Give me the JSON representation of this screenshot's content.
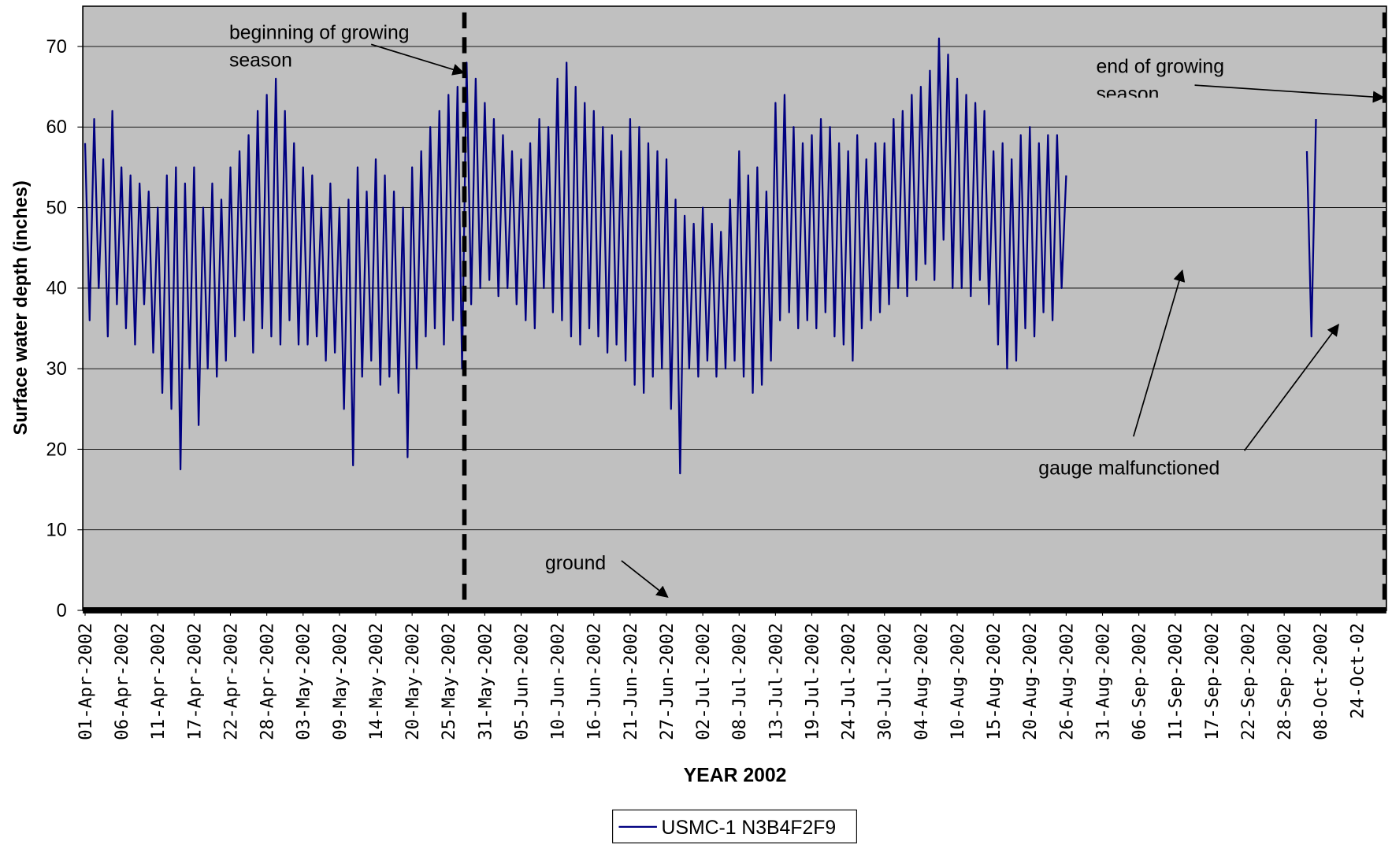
{
  "chart_data": {
    "type": "line",
    "x_title": "YEAR 2002",
    "y_title": "Surface water depth (inches)",
    "ylim": [
      0,
      75
    ],
    "yticks": [
      0,
      10,
      20,
      30,
      40,
      50,
      60,
      70
    ],
    "grid": true,
    "legend": "bottom",
    "categories": [
      "01-Apr-2002",
      null,
      null,
      null,
      null,
      null,
      null,
      null,
      "06-Apr-2002",
      null,
      null,
      null,
      null,
      null,
      null,
      null,
      "11-Apr-2002",
      null,
      null,
      null,
      null,
      null,
      null,
      null,
      "17-Apr-2002",
      null,
      null,
      null,
      null,
      null,
      null,
      null,
      "22-Apr-2002",
      null,
      null,
      null,
      null,
      null,
      null,
      null,
      "28-Apr-2002",
      null,
      null,
      null,
      null,
      null,
      null,
      null,
      "03-May-2002",
      null,
      null,
      null,
      null,
      null,
      null,
      null,
      "09-May-2002",
      null,
      null,
      null,
      null,
      null,
      null,
      null,
      "14-May-2002",
      null,
      null,
      null,
      null,
      null,
      null,
      null,
      "20-May-2002",
      null,
      null,
      null,
      null,
      null,
      null,
      null,
      "25-May-2002",
      null,
      null,
      null,
      null,
      null,
      null,
      null,
      "31-May-2002",
      null,
      null,
      null,
      null,
      null,
      null,
      null,
      "05-Jun-2002",
      null,
      null,
      null,
      null,
      null,
      null,
      null,
      "10-Jun-2002",
      null,
      null,
      null,
      null,
      null,
      null,
      null,
      "16-Jun-2002",
      null,
      null,
      null,
      null,
      null,
      null,
      null,
      "21-Jun-2002",
      null,
      null,
      null,
      null,
      null,
      null,
      null,
      "27-Jun-2002",
      null,
      null,
      null,
      null,
      null,
      null,
      null,
      "02-Jul-2002",
      null,
      null,
      null,
      null,
      null,
      null,
      null,
      "08-Jul-2002",
      null,
      null,
      null,
      null,
      null,
      null,
      null,
      "13-Jul-2002",
      null,
      null,
      null,
      null,
      null,
      null,
      null,
      "19-Jul-2002",
      null,
      null,
      null,
      null,
      null,
      null,
      null,
      "24-Jul-2002",
      null,
      null,
      null,
      null,
      null,
      null,
      null,
      "30-Jul-2002",
      null,
      null,
      null,
      null,
      null,
      null,
      null,
      "04-Aug-2002",
      null,
      null,
      null,
      null,
      null,
      null,
      null,
      "10-Aug-2002",
      null,
      null,
      null,
      null,
      null,
      null,
      null,
      "15-Aug-2002",
      null,
      null,
      null,
      null,
      null,
      null,
      null,
      "20-Aug-2002",
      null,
      null,
      null,
      null,
      null,
      null,
      null,
      "26-Aug-2002",
      null,
      null,
      null,
      null,
      null,
      null,
      null,
      "31-Aug-2002",
      null,
      null,
      null,
      null,
      null,
      null,
      null,
      "06-Sep-2002",
      null,
      null,
      null,
      null,
      null,
      null,
      null,
      "11-Sep-2002",
      null,
      null,
      null,
      null,
      null,
      null,
      null,
      "17-Sep-2002",
      null,
      null,
      null,
      null,
      null,
      null,
      null,
      "22-Sep-2002",
      null,
      null,
      null,
      null,
      null,
      null,
      null,
      "28-Sep-2002",
      null,
      null,
      null,
      null,
      null,
      null,
      null,
      "08-Oct-2002",
      null,
      null,
      null,
      null,
      null,
      null,
      null,
      "24-Oct-02",
      null,
      null,
      null,
      null,
      null,
      null
    ],
    "series": [
      {
        "name": "USMC-1 N3B4F2F9",
        "color": "#000080",
        "values": [
          58,
          36,
          61,
          40,
          56,
          34,
          62,
          38,
          55,
          35,
          54,
          33,
          53,
          38,
          52,
          32,
          50,
          27,
          54,
          25,
          55,
          17.5,
          53,
          30,
          55,
          23,
          50,
          30,
          53,
          29,
          51,
          31,
          55,
          34,
          57,
          36,
          59,
          32,
          62,
          35,
          64,
          34,
          66,
          33,
          62,
          36,
          58,
          33,
          55,
          33,
          54,
          34,
          50,
          31,
          53,
          32,
          50,
          25,
          51,
          18,
          55,
          29,
          52,
          31,
          56,
          28,
          54,
          29,
          52,
          27,
          50,
          19,
          55,
          30,
          57,
          34,
          60,
          35,
          62,
          33,
          64,
          36,
          65,
          30,
          68,
          38,
          66,
          40,
          63,
          41,
          61,
          39,
          59,
          40,
          57,
          38,
          56,
          36,
          58,
          35,
          61,
          40,
          60,
          37,
          66,
          36,
          68,
          34,
          65,
          33,
          63,
          35,
          62,
          34,
          60,
          32,
          59,
          33,
          57,
          31,
          61,
          28,
          60,
          27,
          58,
          29,
          57,
          30,
          56,
          25,
          51,
          17,
          49,
          30,
          48,
          29,
          50,
          31,
          48,
          29,
          47,
          30,
          51,
          31,
          57,
          29,
          54,
          27,
          55,
          28,
          52,
          31,
          63,
          36,
          64,
          37,
          60,
          35,
          58,
          36,
          59,
          35,
          61,
          37,
          60,
          34,
          58,
          33,
          57,
          31,
          59,
          35,
          56,
          36,
          58,
          37,
          58,
          38,
          61,
          40,
          62,
          39,
          64,
          41,
          65,
          43,
          67,
          41,
          71,
          46,
          69,
          40,
          66,
          40,
          64,
          39,
          63,
          41,
          62,
          38,
          57,
          33,
          58,
          30,
          56,
          31,
          59,
          35,
          60,
          34,
          58,
          37,
          59,
          36,
          59,
          40,
          54,
          null,
          null,
          null,
          null,
          null,
          null,
          null,
          null,
          null,
          null,
          null,
          null,
          null,
          null,
          null,
          null,
          null,
          null,
          null,
          null,
          null,
          null,
          null,
          null,
          null,
          null,
          null,
          null,
          null,
          null,
          null,
          null,
          null,
          null,
          null,
          null,
          null,
          null,
          null,
          null,
          null,
          null,
          null,
          null,
          null,
          null,
          null,
          null,
          null,
          null,
          null,
          null,
          57,
          34,
          61,
          null,
          null,
          null,
          null,
          null,
          null,
          null,
          null,
          null,
          null,
          null,
          null,
          null,
          null,
          null
        ]
      }
    ],
    "annotations": [
      {
        "lines": [
          "beginning of growing",
          "season"
        ]
      },
      {
        "lines": [
          "end of growing",
          "season"
        ]
      },
      {
        "lines": [
          "gauge malfunctioned"
        ]
      },
      {
        "lines": [
          "ground"
        ]
      }
    ]
  }
}
